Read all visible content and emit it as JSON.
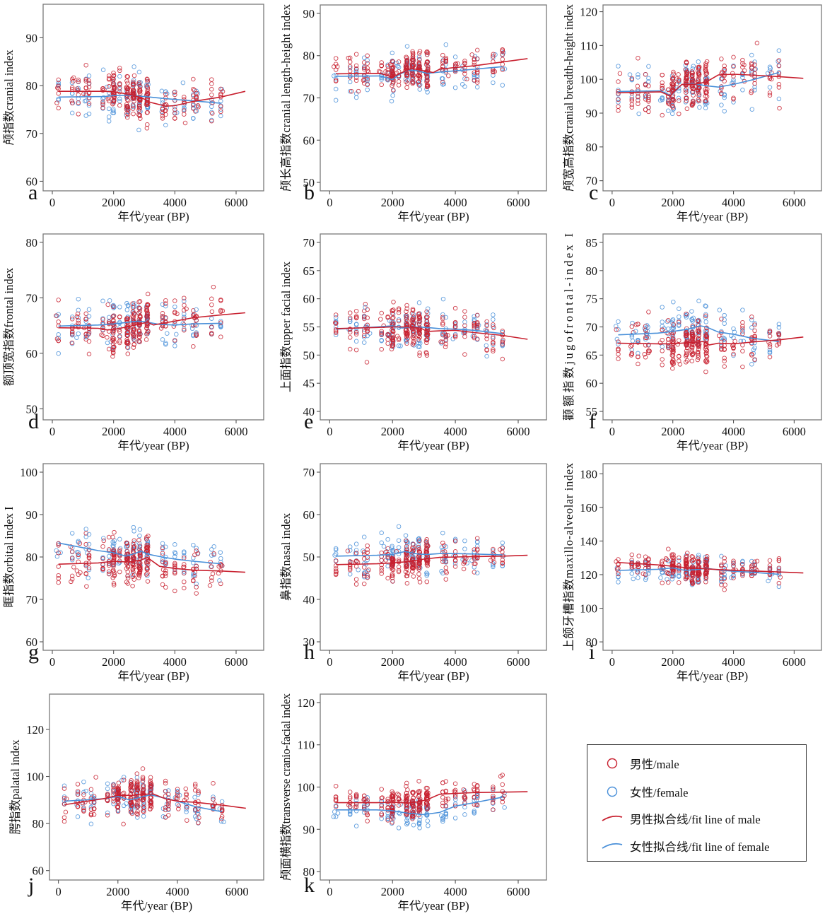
{
  "colors": {
    "male": "#c8202f",
    "female": "#4a90d9"
  },
  "legend": {
    "items": [
      {
        "key": "male",
        "type": "marker",
        "label": "男性/male"
      },
      {
        "key": "female",
        "type": "marker",
        "label": "女性/female"
      },
      {
        "key": "male",
        "type": "line",
        "label": "男性拟合线/fit line of male"
      },
      {
        "key": "female",
        "type": "line",
        "label": "女性拟合线/fit line of female"
      }
    ]
  },
  "chart_data": [
    {
      "panel": "a",
      "type": "scatter",
      "ylabel": "颅指数cranial index",
      "xlabel": "年代/year (BP)",
      "xlim": [
        -300,
        6900
      ],
      "xticks": [
        0,
        2000,
        4000,
        6000
      ],
      "ylim": [
        58,
        97
      ],
      "yticks": [
        60,
        70,
        80,
        90
      ],
      "clusters": [
        200,
        650,
        850,
        1100,
        1200,
        1650,
        1850,
        2000,
        2200,
        2450,
        2650,
        2850,
        3100,
        3600,
        3700,
        4000,
        4300,
        4600,
        4700,
        5200,
        5500
      ],
      "male_spread": [
        70,
        87
      ],
      "female_spread": [
        69,
        88
      ],
      "fit_male": {
        "x": [
          200,
          1700,
          2000,
          2500,
          2900,
          3200,
          3700,
          4000,
          4600,
          5500,
          6300
        ],
        "y": [
          78.8,
          78.8,
          78.7,
          78.2,
          77.5,
          76.5,
          75.7,
          75.8,
          76.7,
          77.6,
          78.8
        ]
      },
      "fit_female": {
        "x": [
          200,
          1700,
          2000,
          2500,
          3000,
          3500,
          4000,
          4600,
          5500
        ],
        "y": [
          77.6,
          77.7,
          77.9,
          78.0,
          77.7,
          77.4,
          77.1,
          76.8,
          76.3
        ]
      }
    },
    {
      "panel": "b",
      "type": "scatter",
      "ylabel": "颅长高指数cranial length-height index",
      "xlabel": "年代/year (BP)",
      "xlim": [
        -300,
        6900
      ],
      "xticks": [
        0,
        2000,
        4000,
        6000
      ],
      "ylim": [
        48,
        92
      ],
      "yticks": [
        50,
        60,
        70,
        80,
        90
      ],
      "clusters": [
        200,
        650,
        850,
        1100,
        1200,
        1650,
        1850,
        2000,
        2200,
        2450,
        2650,
        2850,
        3100,
        3600,
        3700,
        4000,
        4300,
        4600,
        4700,
        5200,
        5500
      ],
      "male_spread": [
        68,
        84
      ],
      "female_spread": [
        64,
        84
      ],
      "fit_male": {
        "x": [
          200,
          1600,
          1800,
          2000,
          2300,
          2600,
          3000,
          3300,
          3500,
          4000,
          4600,
          5500,
          6300
        ],
        "y": [
          75.7,
          75.8,
          75.4,
          74.9,
          76.0,
          77.0,
          76.4,
          76.0,
          76.8,
          77.2,
          77.6,
          78.5,
          79.3
        ]
      },
      "fit_female": {
        "x": [
          200,
          1600,
          1800,
          2000,
          2200,
          2500,
          2800,
          3100,
          3500,
          4000,
          4600,
          5500
        ],
        "y": [
          75.1,
          75.2,
          74.8,
          74.3,
          75.5,
          76.6,
          76.4,
          75.8,
          76.1,
          76.4,
          76.8,
          77.4
        ]
      }
    },
    {
      "panel": "c",
      "type": "scatter",
      "ylabel": "颅宽高指数cranial breadth-height index",
      "xlabel": "年代/year (BP)",
      "xlim": [
        -300,
        6900
      ],
      "xticks": [
        0,
        2000,
        4000,
        6000
      ],
      "ylim": [
        67,
        122
      ],
      "yticks": [
        70,
        80,
        90,
        100,
        110,
        120
      ],
      "clusters": [
        200,
        650,
        850,
        1100,
        1200,
        1650,
        1850,
        2000,
        2200,
        2450,
        2650,
        2850,
        3100,
        3600,
        3700,
        4000,
        4300,
        4600,
        4700,
        5200,
        5500
      ],
      "male_spread": [
        82,
        110
      ],
      "female_spread": [
        82,
        110
      ],
      "fit_male": {
        "x": [
          200,
          1600,
          1800,
          1900,
          2000,
          2300,
          2700,
          3100,
          3500,
          4000,
          4500,
          5500,
          6300
        ],
        "y": [
          96.0,
          96.3,
          95.5,
          95.0,
          96.0,
          98.5,
          98.5,
          99.2,
          101.3,
          101.5,
          101.3,
          100.8,
          100.3
        ]
      },
      "fit_female": {
        "x": [
          200,
          1600,
          1800,
          1900,
          2000,
          2300,
          2700,
          3100,
          3500,
          4000,
          4600,
          5500
        ],
        "y": [
          96.4,
          96.6,
          95.8,
          95.2,
          95.8,
          98.5,
          98.7,
          98.1,
          97.7,
          98.5,
          99.8,
          102.0
        ]
      }
    },
    {
      "panel": "d",
      "type": "scatter",
      "ylabel": "额顶宽指数frontal index",
      "xlabel": "年代/year (BP)",
      "xlim": [
        -300,
        6900
      ],
      "xticks": [
        0,
        2000,
        4000,
        6000
      ],
      "ylim": [
        48,
        81.5
      ],
      "yticks": [
        50,
        60,
        70,
        80
      ],
      "clusters": [
        200,
        650,
        850,
        1100,
        1200,
        1650,
        1850,
        2000,
        2200,
        2450,
        2650,
        2850,
        3100,
        3600,
        3700,
        4000,
        4300,
        4600,
        4700,
        5200,
        5500
      ],
      "male_spread": [
        57,
        73
      ],
      "female_spread": [
        57,
        73
      ],
      "fit_male": {
        "x": [
          200,
          1500,
          1800,
          2000,
          2400,
          2800,
          3100,
          3300,
          3600,
          4000,
          4600,
          5500,
          6300
        ],
        "y": [
          64.6,
          64.5,
          64.2,
          64.3,
          64.7,
          65.2,
          65.6,
          65.1,
          65.4,
          65.8,
          66.4,
          66.9,
          67.3
        ]
      },
      "fit_female": {
        "x": [
          200,
          1500,
          2000,
          2500,
          2800,
          3100,
          3500,
          4000,
          4600,
          5500
        ],
        "y": [
          64.9,
          65.1,
          65.3,
          65.6,
          65.8,
          65.6,
          65.2,
          65.1,
          65.3,
          65.4
        ]
      }
    },
    {
      "panel": "e",
      "type": "scatter",
      "ylabel": "上面指数upper facial index",
      "xlabel": "年代/year (BP)",
      "xlim": [
        -300,
        6900
      ],
      "xticks": [
        0,
        2000,
        4000,
        6000
      ],
      "ylim": [
        38.5,
        71.5
      ],
      "yticks": [
        40,
        45,
        50,
        55,
        60,
        65,
        70
      ],
      "clusters": [
        200,
        650,
        850,
        1100,
        1200,
        1650,
        1850,
        2000,
        2200,
        2450,
        2650,
        2850,
        3100,
        3600,
        3700,
        4000,
        4300,
        4600,
        4700,
        5000,
        5200,
        5500
      ],
      "male_spread": [
        47,
        62
      ],
      "female_spread": [
        47,
        62
      ],
      "fit_male": {
        "x": [
          200,
          1500,
          2000,
          2500,
          2900,
          3100,
          3500,
          4000,
          4600,
          5500,
          6300
        ],
        "y": [
          54.7,
          54.9,
          55.0,
          55.0,
          54.8,
          54.2,
          54.3,
          54.4,
          54.0,
          53.5,
          52.8
        ]
      },
      "fit_female": {
        "x": [
          200,
          1500,
          2000,
          2300,
          2700,
          3100,
          3500,
          4000,
          4600,
          5500
        ],
        "y": [
          54.6,
          55.0,
          55.2,
          54.8,
          55.0,
          54.9,
          54.7,
          54.6,
          54.4,
          53.8
        ]
      }
    },
    {
      "panel": "f",
      "type": "scatter",
      "ylabel": "颧额指数jugofrontal-index I",
      "xlabel": "年代/year (BP)",
      "xlim": [
        -300,
        6900
      ],
      "xticks": [
        0,
        2000,
        4000,
        6000
      ],
      "ylim": [
        53.5,
        86.5
      ],
      "yticks": [
        55,
        60,
        65,
        70,
        75,
        80,
        85
      ],
      "clusters": [
        200,
        650,
        850,
        1100,
        1200,
        1650,
        1850,
        2000,
        2200,
        2450,
        2650,
        2850,
        3100,
        3600,
        3700,
        4000,
        4300,
        4600,
        4700,
        5200,
        5500
      ],
      "male_spread": [
        59,
        75
      ],
      "female_spread": [
        61,
        77
      ],
      "fit_male": {
        "x": [
          200,
          1500,
          2000,
          2500,
          3000,
          3200,
          3500,
          4000,
          4600,
          5500,
          6300
        ],
        "y": [
          67.1,
          67.0,
          67.0,
          67.2,
          67.4,
          66.8,
          67.1,
          67.0,
          67.3,
          67.7,
          68.2
        ]
      },
      "fit_female": {
        "x": [
          200,
          1500,
          2000,
          2500,
          2900,
          3100,
          3500,
          4000,
          4600,
          5500
        ],
        "y": [
          68.6,
          68.9,
          69.2,
          69.6,
          70.2,
          70.0,
          69.1,
          68.7,
          68.0,
          67.4
        ]
      }
    },
    {
      "panel": "g",
      "type": "scatter",
      "ylabel": "眶指数orbital index I",
      "xlabel": "年代/year (BP)",
      "xlim": [
        -300,
        6900
      ],
      "xticks": [
        0,
        2000,
        4000,
        6000
      ],
      "ylim": [
        58,
        102
      ],
      "yticks": [
        60,
        70,
        80,
        90,
        100
      ],
      "clusters": [
        200,
        650,
        850,
        1100,
        1200,
        1650,
        1850,
        2000,
        2200,
        2450,
        2650,
        2850,
        3100,
        3600,
        3700,
        4000,
        4300,
        4600,
        4700,
        5200,
        5500
      ],
      "male_spread": [
        70,
        90
      ],
      "female_spread": [
        72,
        90
      ],
      "fit_male": {
        "x": [
          200,
          1500,
          2000,
          2500,
          2900,
          3100,
          3500,
          4000,
          4600,
          5500,
          6300
        ],
        "y": [
          78.3,
          78.6,
          79.0,
          78.8,
          79.3,
          79.9,
          77.8,
          77.3,
          76.9,
          76.7,
          76.4
        ]
      },
      "fit_female": {
        "x": [
          200,
          1500,
          2000,
          2400,
          2600,
          2900,
          3100,
          3500,
          4000,
          4600,
          5500
        ],
        "y": [
          83.3,
          81.5,
          81.0,
          80.2,
          80.6,
          81.4,
          80.7,
          80.1,
          79.5,
          79.0,
          78.4
        ]
      }
    },
    {
      "panel": "h",
      "type": "scatter",
      "ylabel": "鼻指数nasal index",
      "xlabel": "年代/year (BP)",
      "xlim": [
        -300,
        6900
      ],
      "xticks": [
        0,
        2000,
        4000,
        6000
      ],
      "ylim": [
        28,
        72
      ],
      "yticks": [
        30,
        40,
        50,
        60,
        70
      ],
      "clusters": [
        200,
        650,
        850,
        1100,
        1200,
        1650,
        1850,
        2000,
        2200,
        2450,
        2650,
        2850,
        3100,
        3600,
        3700,
        4000,
        4300,
        4600,
        4700,
        5200,
        5500
      ],
      "male_spread": [
        41,
        58
      ],
      "female_spread": [
        42,
        60
      ],
      "fit_male": {
        "x": [
          200,
          1500,
          2000,
          2500,
          3000,
          3500,
          4000,
          4600,
          5500,
          6300
        ],
        "y": [
          48.2,
          48.4,
          48.6,
          48.9,
          49.5,
          49.9,
          50.0,
          50.1,
          50.2,
          50.4
        ]
      },
      "fit_female": {
        "x": [
          200,
          1500,
          2000,
          2400,
          2800,
          3100,
          3500,
          4000,
          4600,
          5500
        ],
        "y": [
          50.2,
          50.4,
          50.6,
          51.3,
          50.7,
          50.6,
          50.8,
          50.8,
          50.7,
          50.5
        ]
      }
    },
    {
      "panel": "i",
      "type": "scatter",
      "ylabel": "上颌牙槽指数maxillo-alveolar index",
      "xlabel": "年代/year (BP)",
      "xlim": [
        -300,
        6900
      ],
      "xticks": [
        0,
        2000,
        4000,
        6000
      ],
      "ylim": [
        75,
        186
      ],
      "yticks": [
        80,
        100,
        120,
        140,
        160,
        180
      ],
      "clusters": [
        200,
        650,
        850,
        1100,
        1200,
        1650,
        1850,
        2000,
        2200,
        2450,
        2650,
        2850,
        3100,
        3600,
        3700,
        4000,
        4300,
        4600,
        4700,
        5200,
        5500
      ],
      "male_spread": [
        108,
        140
      ],
      "female_spread": [
        107,
        140
      ],
      "fit_male": {
        "x": [
          200,
          1500,
          2000,
          2500,
          3000,
          3500,
          4000,
          4600,
          5500,
          6300
        ],
        "y": [
          127.2,
          125.8,
          125.0,
          124.0,
          123.5,
          123.0,
          122.6,
          122.2,
          121.6,
          121.0
        ]
      },
      "fit_female": {
        "x": [
          200,
          1500,
          2000,
          2400,
          2800,
          3100,
          3500,
          4000,
          4600,
          5500
        ],
        "y": [
          122.5,
          123.2,
          124.0,
          122.5,
          123.0,
          123.8,
          122.8,
          122.0,
          121.4,
          120.2
        ]
      }
    },
    {
      "panel": "j",
      "type": "scatter",
      "ylabel": "腭指数palatal index",
      "xlabel": "年代/year (BP)",
      "xlim": [
        -300,
        6900
      ],
      "xticks": [
        0,
        2000,
        4000,
        6000
      ],
      "ylim": [
        56,
        135
      ],
      "yticks": [
        60,
        80,
        100,
        120
      ],
      "clusters": [
        200,
        650,
        850,
        1100,
        1200,
        1650,
        1850,
        2000,
        2200,
        2450,
        2650,
        2850,
        3100,
        3600,
        3700,
        4000,
        4300,
        4600,
        4700,
        5200,
        5500
      ],
      "male_spread": [
        76,
        106
      ],
      "female_spread": [
        74,
        106
      ],
      "fit_male": {
        "x": [
          200,
          1500,
          2000,
          2500,
          3000,
          3200,
          3600,
          4000,
          4600,
          5500,
          6300
        ],
        "y": [
          88.0,
          90.5,
          92.0,
          92.0,
          92.5,
          92.5,
          90.5,
          89.5,
          89.0,
          87.8,
          86.5
        ]
      },
      "fit_female": {
        "x": [
          200,
          1500,
          2000,
          2400,
          2700,
          3100,
          3500,
          4000,
          4600,
          5500
        ],
        "y": [
          89.5,
          90.5,
          91.5,
          90.0,
          91.0,
          92.2,
          91.0,
          89.5,
          87.2,
          85.0
        ]
      }
    },
    {
      "panel": "k",
      "type": "scatter",
      "ylabel": "颅面横指数transverse cranio-facial index",
      "xlabel": "年代/year (BP)",
      "xlim": [
        -300,
        6900
      ],
      "xticks": [
        0,
        2000,
        4000,
        6000
      ],
      "ylim": [
        78,
        122
      ],
      "yticks": [
        80,
        90,
        100,
        110,
        120
      ],
      "clusters": [
        200,
        650,
        850,
        1100,
        1200,
        1650,
        1850,
        2000,
        2200,
        2450,
        2650,
        2850,
        3100,
        3600,
        3700,
        4000,
        4300,
        4600,
        4700,
        5200,
        5500
      ],
      "male_spread": [
        89,
        104
      ],
      "female_spread": [
        87,
        101
      ],
      "fit_male": {
        "x": [
          200,
          1500,
          2000,
          2500,
          2800,
          3100,
          3500,
          4000,
          4600,
          5500,
          6300
        ],
        "y": [
          96.3,
          96.3,
          96.4,
          96.2,
          96.5,
          97.0,
          98.3,
          98.5,
          98.7,
          98.8,
          98.9
        ]
      },
      "fit_female": {
        "x": [
          200,
          1500,
          2000,
          2500,
          3000,
          3500,
          4000,
          4600,
          5500
        ],
        "y": [
          94.6,
          94.6,
          94.4,
          93.8,
          93.5,
          94.0,
          95.5,
          96.3,
          97.6
        ]
      }
    }
  ]
}
